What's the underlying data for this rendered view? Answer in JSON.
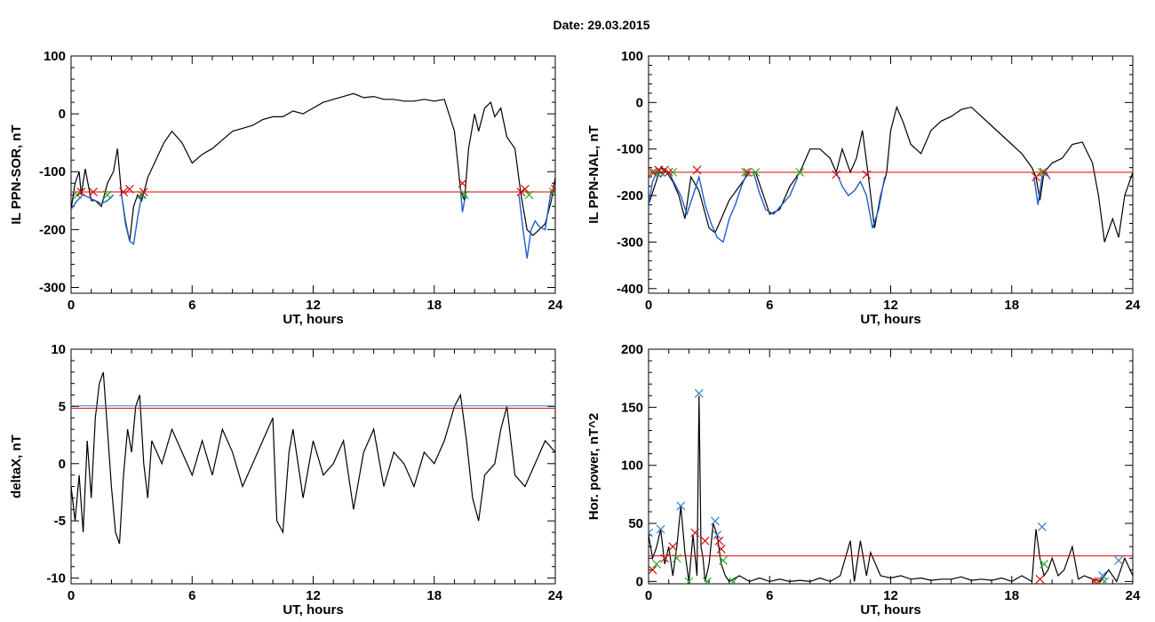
{
  "page_title": "Date:  29.03.2015",
  "colors": {
    "trace": "#000000",
    "event": "#1f5fc8",
    "threshold": "#e00000",
    "threshold_alt": "#2a8fd0",
    "marker_red": "#d01010",
    "marker_green": "#20b020",
    "marker_blue": "#3a7fd0"
  },
  "chart_data": [
    {
      "id": "tl",
      "type": "line",
      "xlabel": "UT, hours",
      "ylabel": "IL PPN-SOR, nT",
      "xlim": [
        0,
        24
      ],
      "ylim": [
        -310,
        100
      ],
      "xticks": [
        "0",
        "6",
        "12",
        "18",
        "24"
      ],
      "yticks": [
        100,
        0,
        -100,
        -200,
        -300
      ],
      "grid": false,
      "series": [
        {
          "x": [
            0,
            0.2,
            0.4,
            0.5,
            0.7,
            1,
            1.2,
            1.5,
            1.8,
            2.1,
            2.3,
            2.5,
            2.7,
            2.9,
            3.1,
            3.3,
            3.5,
            3.8,
            4.2,
            4.6,
            5,
            5.5,
            6,
            6.5,
            7,
            7.5,
            8,
            8.5,
            9,
            9.5,
            10,
            10.5,
            11,
            11.5,
            12,
            12.5,
            13,
            13.5,
            14,
            14.5,
            15,
            15.5,
            16,
            16.5,
            17,
            17.5,
            18,
            18.5,
            19,
            19.3,
            19.5,
            19.7,
            20,
            20.2,
            20.5,
            20.8,
            21,
            21.3,
            21.6,
            22,
            22.3,
            22.6,
            22.9,
            23.2,
            23.5,
            23.8,
            24
          ],
          "y": [
            -165,
            -120,
            -100,
            -140,
            -95,
            -150,
            -150,
            -160,
            -120,
            -100,
            -60,
            -140,
            -190,
            -220,
            -160,
            -140,
            -150,
            -110,
            -80,
            -50,
            -30,
            -50,
            -85,
            -70,
            -60,
            -45,
            -30,
            -25,
            -20,
            -10,
            -5,
            -5,
            5,
            0,
            10,
            20,
            25,
            30,
            35,
            28,
            30,
            25,
            25,
            22,
            22,
            25,
            22,
            25,
            -30,
            -130,
            -150,
            -60,
            0,
            -30,
            10,
            20,
            -5,
            10,
            -40,
            -60,
            -140,
            -200,
            -210,
            -200,
            -190,
            -150,
            -110
          ]
        }
      ],
      "event_segments": [
        {
          "x": [
            0,
            0.3,
            0.6,
            0.9,
            1.2,
            1.5,
            1.8,
            2.1
          ],
          "y": [
            -165,
            -150,
            -140,
            -145,
            -150,
            -155,
            -150,
            -140
          ]
        },
        {
          "x": [
            2.5,
            2.7,
            2.9,
            3.1,
            3.3,
            3.5,
            3.7
          ],
          "y": [
            -140,
            -185,
            -220,
            -225,
            -180,
            -140,
            -145
          ]
        },
        {
          "x": [
            19.3,
            19.4,
            19.5,
            19.6
          ],
          "y": [
            -130,
            -170,
            -150,
            -140
          ]
        },
        {
          "x": [
            22.2,
            22.4,
            22.6,
            22.8,
            23,
            23.2,
            23.5,
            23.8
          ],
          "y": [
            -140,
            -200,
            -250,
            -200,
            -185,
            -195,
            -200,
            -130
          ]
        }
      ],
      "threshold": -135,
      "red_markers": [
        [
          0.5,
          -135
        ],
        [
          1.1,
          -135
        ],
        [
          2.6,
          -135
        ],
        [
          2.9,
          -130
        ],
        [
          3.6,
          -135
        ],
        [
          19.4,
          -120
        ],
        [
          22.3,
          -135
        ],
        [
          22.5,
          -130
        ],
        [
          24,
          -130
        ]
      ],
      "green_markers": [
        [
          0.3,
          -140
        ],
        [
          1.8,
          -140
        ],
        [
          3.5,
          -140
        ],
        [
          19.5,
          -140
        ],
        [
          22.7,
          -140
        ],
        [
          23.9,
          -135
        ]
      ]
    },
    {
      "id": "tr",
      "type": "line",
      "xlabel": "UT, hours",
      "ylabel": "IL PPN-NAL, nT",
      "xlim": [
        0,
        24
      ],
      "ylim": [
        -410,
        100
      ],
      "xticks": [
        "0",
        "6",
        "12",
        "18",
        "24"
      ],
      "yticks": [
        100,
        0,
        -100,
        -200,
        -300,
        -400
      ],
      "grid": false,
      "series": [
        {
          "x": [
            0,
            0.3,
            0.6,
            0.9,
            1.2,
            1.5,
            1.8,
            2.1,
            2.5,
            3,
            3.3,
            3.6,
            4,
            4.5,
            5,
            5.3,
            5.7,
            6,
            6.5,
            7,
            7.5,
            8,
            8.5,
            9,
            9.3,
            9.6,
            10,
            10.3,
            10.6,
            10.9,
            11.2,
            11.5,
            11.8,
            12,
            12.3,
            12.6,
            13,
            13.5,
            14,
            14.5,
            15,
            15.5,
            16,
            16.5,
            17,
            17.5,
            18,
            18.5,
            19,
            19.2,
            19.4,
            19.6,
            20,
            20.5,
            21,
            21.5,
            22,
            22.3,
            22.6,
            23,
            23.3,
            23.6,
            24
          ],
          "y": [
            -220,
            -180,
            -140,
            -150,
            -170,
            -200,
            -250,
            -160,
            -190,
            -270,
            -280,
            -250,
            -210,
            -180,
            -150,
            -150,
            -200,
            -240,
            -230,
            -180,
            -150,
            -100,
            -100,
            -120,
            -150,
            -100,
            -150,
            -120,
            -60,
            -160,
            -270,
            -200,
            -150,
            -60,
            -10,
            -40,
            -90,
            -110,
            -60,
            -40,
            -30,
            -15,
            -10,
            -30,
            -50,
            -70,
            -90,
            -110,
            -140,
            -160,
            -210,
            -150,
            -130,
            -120,
            -90,
            -85,
            -130,
            -200,
            -300,
            -250,
            -290,
            -200,
            -150
          ]
        }
      ],
      "event_segments": [
        {
          "x": [
            0,
            0.2,
            0.4,
            0.6,
            0.8,
            1,
            1.3,
            1.6,
            1.9,
            2.2,
            2.5,
            2.8,
            3.1,
            3.4,
            3.7,
            4,
            4.3,
            4.6,
            4.9,
            5.2,
            5.5,
            5.8,
            6.2,
            6.6,
            7,
            7.4
          ],
          "y": [
            -220,
            -170,
            -150,
            -160,
            -150,
            -150,
            -175,
            -200,
            -240,
            -200,
            -160,
            -220,
            -260,
            -290,
            -300,
            -250,
            -220,
            -180,
            -150,
            -150,
            -195,
            -230,
            -240,
            -220,
            -200,
            -160
          ]
        },
        {
          "x": [
            9.3,
            9.6,
            9.9,
            10.2,
            10.5,
            10.8,
            11.1,
            11.4,
            11.7
          ],
          "y": [
            -150,
            -180,
            -200,
            -190,
            -170,
            -200,
            -270,
            -230,
            -160
          ]
        },
        {
          "x": [
            19.1,
            19.3,
            19.5,
            19.7,
            19.9
          ],
          "y": [
            -160,
            -220,
            -160,
            -150,
            -165
          ]
        }
      ],
      "threshold": -150,
      "red_markers": [
        [
          0.2,
          -150
        ],
        [
          0.5,
          -145
        ],
        [
          0.8,
          -145
        ],
        [
          1,
          -150
        ],
        [
          2.4,
          -145
        ],
        [
          4.9,
          -150
        ],
        [
          9.3,
          -155
        ],
        [
          10.8,
          -155
        ],
        [
          19.2,
          -160
        ],
        [
          19.6,
          -150
        ]
      ],
      "green_markers": [
        [
          0.3,
          -150
        ],
        [
          0.6,
          -150
        ],
        [
          1.2,
          -150
        ],
        [
          4.8,
          -150
        ],
        [
          5.3,
          -150
        ],
        [
          7.5,
          -150
        ],
        [
          19.5,
          -150
        ]
      ]
    },
    {
      "id": "bl",
      "type": "line",
      "xlabel": "UT, hours",
      "ylabel": "deltaX, nT",
      "xlim": [
        0,
        24
      ],
      "ylim": [
        -10.5,
        10
      ],
      "xticks": [
        "0",
        "6",
        "12",
        "18",
        "24"
      ],
      "yticks": [
        10,
        5,
        0,
        -5,
        -10
      ],
      "grid": false,
      "series": [
        {
          "x": [
            0,
            0.2,
            0.4,
            0.6,
            0.8,
            1,
            1.2,
            1.4,
            1.6,
            1.8,
            2,
            2.2,
            2.4,
            2.6,
            2.8,
            3,
            3.2,
            3.4,
            3.6,
            3.8,
            4,
            4.5,
            5,
            5.5,
            6,
            6.5,
            7,
            7.5,
            8,
            8.5,
            9,
            9.5,
            10,
            10.2,
            10.5,
            10.8,
            11,
            11.5,
            12,
            12.5,
            13,
            13.5,
            14,
            14.5,
            15,
            15.5,
            16,
            16.5,
            17,
            17.5,
            18,
            18.5,
            19,
            19.3,
            19.6,
            19.9,
            20.2,
            20.5,
            21,
            21.3,
            21.6,
            22,
            22.5,
            23,
            23.5,
            24
          ],
          "y": [
            -2,
            -5,
            -1,
            -6,
            2,
            -3,
            4,
            7,
            8,
            3,
            -2,
            -6,
            -7,
            -1,
            3,
            1,
            5,
            6,
            0,
            -3,
            2,
            0,
            3,
            1,
            -1,
            2,
            -1,
            3,
            1,
            -2,
            0,
            2,
            4,
            -5,
            -6,
            1,
            3,
            -3,
            2,
            -1,
            0,
            2,
            -4,
            1,
            3,
            -2,
            1,
            0,
            -2,
            1,
            0,
            2,
            5,
            6,
            2,
            -3,
            -5,
            -1,
            0,
            3,
            5,
            -1,
            -2,
            0,
            2,
            1
          ]
        }
      ],
      "threshold": 4.85,
      "threshold_alt": 5.05
    },
    {
      "id": "br",
      "type": "line",
      "xlabel": "UT, hours",
      "ylabel": "Hor. power, nT^2",
      "xlim": [
        0,
        24
      ],
      "ylim": [
        -2,
        200
      ],
      "xticks": [
        "0",
        "6",
        "12",
        "18",
        "24"
      ],
      "yticks": [
        200,
        150,
        100,
        50,
        0
      ],
      "grid": false,
      "series": [
        {
          "x": [
            0,
            0.2,
            0.4,
            0.6,
            0.8,
            1,
            1.2,
            1.4,
            1.6,
            1.8,
            2,
            2.2,
            2.4,
            2.5,
            2.6,
            2.7,
            2.8,
            3,
            3.2,
            3.4,
            3.6,
            3.8,
            4,
            4.5,
            5,
            5.5,
            6,
            6.5,
            7,
            7.5,
            8,
            8.5,
            9,
            9.5,
            10,
            10.2,
            10.5,
            10.8,
            11,
            11.5,
            12,
            12.5,
            13,
            13.5,
            14,
            14.5,
            15,
            15.5,
            16,
            16.5,
            17,
            17.5,
            18,
            18.5,
            19,
            19.2,
            19.4,
            19.6,
            19.8,
            20,
            20.3,
            20.6,
            21,
            21.3,
            21.6,
            22,
            22.4,
            22.8,
            23.2,
            23.6,
            24
          ],
          "y": [
            40,
            20,
            30,
            45,
            15,
            30,
            5,
            30,
            65,
            25,
            0,
            40,
            5,
            160,
            30,
            20,
            0,
            15,
            50,
            40,
            15,
            5,
            0,
            5,
            0,
            3,
            0,
            2,
            0,
            1,
            0,
            3,
            0,
            5,
            35,
            0,
            35,
            5,
            25,
            5,
            3,
            5,
            2,
            3,
            1,
            2,
            2,
            4,
            1,
            2,
            1,
            3,
            0,
            5,
            0,
            45,
            20,
            5,
            10,
            20,
            5,
            10,
            30,
            2,
            5,
            2,
            0,
            10,
            0,
            20,
            5
          ]
        }
      ],
      "threshold": 22,
      "blue_markers": [
        [
          0,
          42
        ],
        [
          0.6,
          45
        ],
        [
          1.6,
          65
        ],
        [
          2.5,
          162
        ],
        [
          3.3,
          52
        ],
        [
          3.4,
          40
        ],
        [
          19.5,
          47
        ],
        [
          22.5,
          5
        ],
        [
          23.3,
          18
        ]
      ],
      "red_markers": [
        [
          0.2,
          10
        ],
        [
          0.8,
          20
        ],
        [
          1.2,
          30
        ],
        [
          2.3,
          42
        ],
        [
          2.8,
          35
        ],
        [
          3.5,
          35
        ],
        [
          3.6,
          28
        ],
        [
          19.4,
          2
        ],
        [
          22.1,
          0
        ],
        [
          22.3,
          0
        ]
      ],
      "green_markers": [
        [
          0.4,
          15
        ],
        [
          1.4,
          20
        ],
        [
          2,
          0
        ],
        [
          2.9,
          0
        ],
        [
          3.7,
          18
        ],
        [
          4.2,
          0
        ],
        [
          19.6,
          15
        ],
        [
          22.6,
          0
        ]
      ]
    }
  ]
}
